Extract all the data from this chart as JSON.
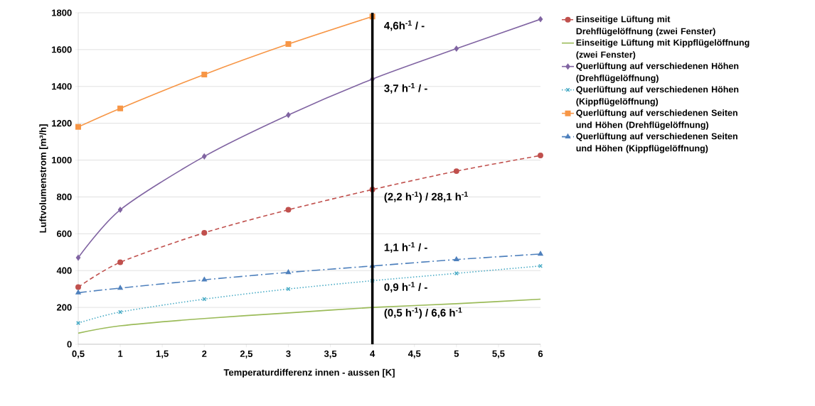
{
  "chart_data": {
    "type": "line",
    "xlabel": "Temperaturdifferenz innen - aussen [K]",
    "ylabel": "Luftvolumenstrom [m³/h]",
    "xlim": [
      0.5,
      6
    ],
    "ylim": [
      0,
      1800
    ],
    "xticks": [
      {
        "value": 0.5,
        "label": "0,5"
      },
      1,
      {
        "value": 1.5,
        "label": "1,5"
      },
      2,
      {
        "value": 2.5,
        "label": "2,5"
      },
      3,
      {
        "value": 3.5,
        "label": "3,5"
      },
      4,
      {
        "value": 4.5,
        "label": "4,5"
      },
      5,
      {
        "value": 5.5,
        "label": "5,5"
      },
      6
    ],
    "yticks": [
      0,
      200,
      400,
      600,
      800,
      1000,
      1200,
      1400,
      1600,
      1800
    ],
    "grid": "y",
    "legend": "right",
    "series": [
      {
        "name": "Einseitige Lüftung mit Drehflügelöffnung (zwei Fenster)",
        "color": "#c0504d",
        "marker": "circle",
        "line_style": "dashed",
        "x": [
          0.5,
          1,
          2,
          3,
          4,
          5,
          6
        ],
        "values": [
          310,
          445,
          605,
          730,
          840,
          940,
          1025
        ]
      },
      {
        "name": "Einseitige Lüftung mit Kippflügelöffnung (zwei Fenster)",
        "color": "#9bbb59",
        "marker": "none",
        "line_style": "solid",
        "x": [
          0.5,
          1,
          2,
          3,
          4,
          5,
          6
        ],
        "values": [
          60,
          100,
          140,
          170,
          200,
          220,
          245
        ]
      },
      {
        "name": "Querlüftung auf verschiedenen Höhen (Drehflügelöffnung)",
        "color": "#8064a2",
        "marker": "diamond",
        "line_style": "solid",
        "x": [
          0.5,
          1,
          2,
          3,
          4,
          5,
          6
        ],
        "values": [
          470,
          730,
          1020,
          1245,
          1440,
          1605,
          1765
        ]
      },
      {
        "name": "Querlüftung auf verschiedenen Höhen (Kippflügelöffnung)",
        "color": "#4bacc6",
        "marker": "cross",
        "line_style": "dotted",
        "x": [
          0.5,
          1,
          2,
          3,
          4,
          5,
          6
        ],
        "values": [
          115,
          175,
          245,
          300,
          345,
          385,
          425
        ]
      },
      {
        "name": "Querlüftung auf verschiedenen Seiten und Höhen (Drehflügelöffnung)",
        "color": "#f79646",
        "marker": "square",
        "line_style": "solid",
        "x": [
          0.5,
          1,
          2,
          3,
          4
        ],
        "values": [
          1180,
          1281,
          1465,
          1630,
          1780
        ]
      },
      {
        "name": "Querlüftung auf verschiedenen Seiten und Höhen (Kippflügelöffnung)",
        "color": "#4f81bd",
        "marker": "triangle",
        "line_style": "dashdot",
        "x": [
          0.5,
          1,
          2,
          3,
          4,
          5,
          6
        ],
        "values": [
          280,
          305,
          350,
          390,
          425,
          460,
          490
        ]
      }
    ],
    "ref_lines": [
      {
        "axis": "x",
        "value": 4,
        "color": "#000000",
        "line_style": "solid"
      }
    ],
    "annotations": [
      "4,6h$^{-1}$ / -",
      "3,7 h$^{-1}$ / -",
      "(2,2 h$^{-1}$) / 28,1 h$^{-1}$",
      "1,1 h$^{-1}$ / -",
      "0,9 h$^{-1}$ / -",
      "(0,5 h$^{-1}$) / 6,6 h$^{-1}$"
    ]
  }
}
